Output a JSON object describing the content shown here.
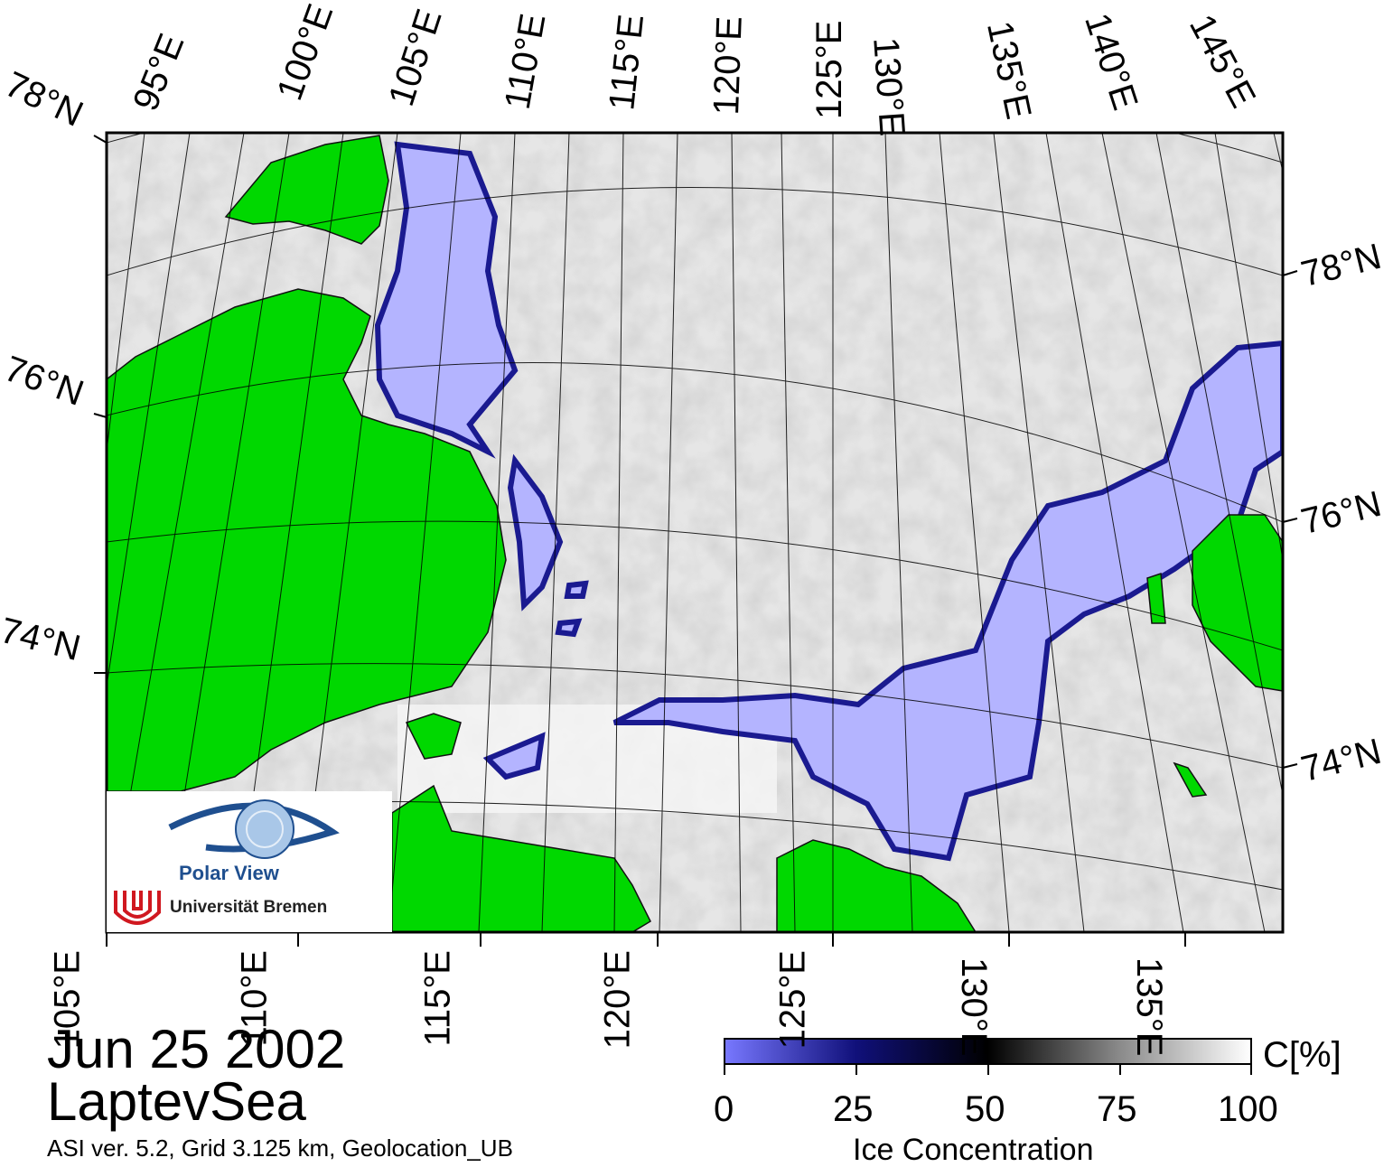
{
  "map": {
    "date": "Jun 25 2002",
    "region": "LaptevSea",
    "footer": "ASI ver. 5.2,  Grid 3.125 km, Geolocation_UB",
    "top_lon_labels": [
      "95°E",
      "100°E",
      "105°E",
      "110°E",
      "115°E",
      "120°E",
      "125°E",
      "130°E",
      "135°E",
      "140°E",
      "145°E"
    ],
    "bottom_lon_labels": [
      "105°E",
      "110°E",
      "115°E",
      "120°E",
      "125°E",
      "130°E",
      "135°E"
    ],
    "left_lat_labels": [
      "78°N",
      "76°N",
      "74°N"
    ],
    "right_lat_labels": [
      "78°N",
      "76°N",
      "74°N"
    ],
    "colors": {
      "land": "#00d800",
      "low_ice": "#b4b4ff",
      "frame": "#000000"
    }
  },
  "colorbar": {
    "title": "Ice Concentration",
    "unit": "C[%]",
    "ticks": [
      "0",
      "25",
      "50",
      "75",
      "100"
    ],
    "gradient": [
      "#7878ff",
      "#000060",
      "#000000",
      "#808080",
      "#ffffff"
    ]
  },
  "logo": {
    "title": "Polar View",
    "subtitle": "Universität Bremen",
    "icon": "eye-globe-icon"
  }
}
